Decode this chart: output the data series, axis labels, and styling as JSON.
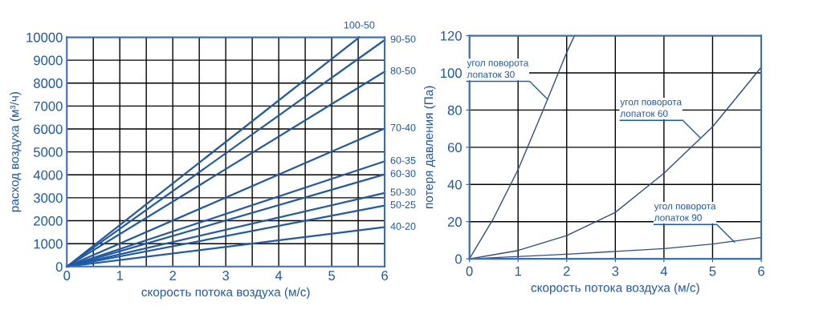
{
  "chart_data": [
    {
      "type": "line",
      "xlabel": "скорость потока воздуха (м/с)",
      "ylabel": "расход воздуха (м³/ч)",
      "xlim": [
        0,
        6
      ],
      "ylim": [
        0,
        10000
      ],
      "xticks": [
        0,
        {
          "value": 0.5,
          "label": null
        },
        1,
        {
          "value": 1.5,
          "label": null
        },
        2,
        {
          "value": 2.5,
          "label": null
        },
        3,
        {
          "value": 3.5,
          "label": null
        },
        4,
        {
          "value": 4.5,
          "label": null
        },
        5,
        {
          "value": 5.5,
          "label": null
        },
        6
      ],
      "yticks": [
        0,
        1000,
        2000,
        3000,
        4000,
        5000,
        6000,
        7000,
        8000,
        9000,
        10000
      ],
      "grid": true,
      "legend": false,
      "marker": "none",
      "line_style": "solid",
      "series": [
        {
          "name": "100-50",
          "color": "#1f5aa6",
          "x": [
            0,
            5.52
          ],
          "values": [
            0,
            10000
          ]
        },
        {
          "name": "90-50",
          "color": "#1f5aa6",
          "x": [
            0,
            6
          ],
          "values": [
            0,
            9880
          ]
        },
        {
          "name": "80-50",
          "color": "#1f5aa6",
          "x": [
            0,
            6
          ],
          "values": [
            0,
            8500
          ]
        },
        {
          "name": "70-40",
          "color": "#1f5aa6",
          "x": [
            0,
            6
          ],
          "values": [
            0,
            6020
          ]
        },
        {
          "name": "60-35",
          "color": "#1f5aa6",
          "x": [
            0,
            6
          ],
          "values": [
            0,
            4590
          ]
        },
        {
          "name": "60-30",
          "color": "#1f5aa6",
          "x": [
            0,
            6
          ],
          "values": [
            0,
            4020
          ]
        },
        {
          "name": "50-30",
          "color": "#1f5aa6",
          "x": [
            0,
            6
          ],
          "values": [
            0,
            3210
          ]
        },
        {
          "name": "50-25",
          "color": "#1f5aa6",
          "x": [
            0,
            6
          ],
          "values": [
            0,
            2660
          ]
        },
        {
          "name": "40-20",
          "color": "#1f5aa6",
          "x": [
            0,
            6
          ],
          "values": [
            0,
            1720
          ]
        }
      ]
    },
    {
      "type": "line",
      "xlabel": "скорость потока воздуха (м/с)",
      "ylabel": "потеря давления (Па)",
      "xlim": [
        0,
        6
      ],
      "ylim": [
        0,
        120
      ],
      "xticks": [
        0,
        1,
        2,
        3,
        4,
        5,
        6
      ],
      "yticks": [
        0,
        20,
        40,
        60,
        80,
        100,
        120
      ],
      "grid": true,
      "legend": false,
      "marker": "none",
      "line_style": "solid",
      "series": [
        {
          "color": "#2b4e8c",
          "x": [
            0,
            0.5,
            1,
            1.5,
            2,
            2.16
          ],
          "values": [
            0,
            22,
            48,
            79,
            111,
            120
          ]
        },
        {
          "color": "#2b4e8c",
          "x": [
            0,
            1,
            2,
            3,
            4,
            5,
            6
          ],
          "values": [
            0,
            4.5,
            12.5,
            25,
            46,
            71,
            103
          ]
        },
        {
          "color": "#2b4e8c",
          "x": [
            0,
            2,
            4,
            5,
            6
          ],
          "values": [
            0,
            2.5,
            5.5,
            8,
            11.5
          ]
        }
      ],
      "annotations": [
        {
          "text": "угол поворота\nлопаток 30",
          "x": 1.6,
          "y": 86
        },
        {
          "text": "угол поворота\nлопаток 60",
          "x": 4.75,
          "y": 65
        },
        {
          "text": "угол поворота\nлопаток 90",
          "x": 5.45,
          "y": 9
        }
      ]
    }
  ]
}
